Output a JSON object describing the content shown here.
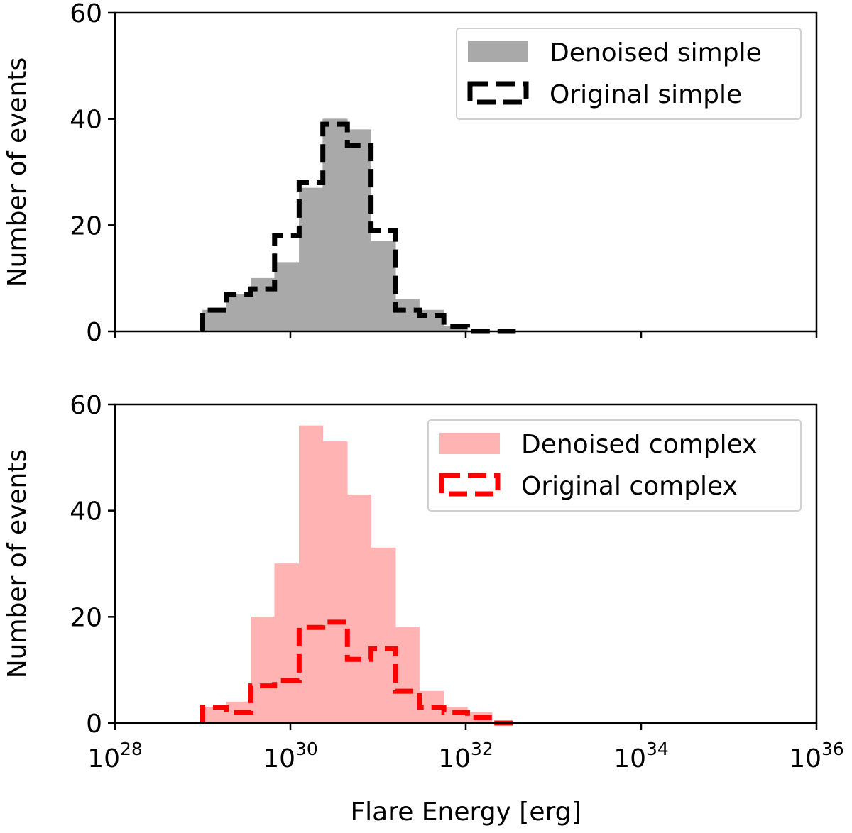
{
  "chart_data": [
    {
      "type": "histogram",
      "panel": "top",
      "ylabel": "Number of events",
      "xlabel": "",
      "xscale": "log10",
      "xlim_exponent": [
        28,
        36
      ],
      "ylim": [
        0,
        60
      ],
      "yticks": [
        "0",
        "20",
        "40",
        "60"
      ],
      "bin_edges_log10": [
        29.0,
        29.27,
        29.55,
        29.82,
        30.1,
        30.37,
        30.65,
        30.92,
        31.2,
        31.47,
        31.75,
        32.02,
        32.3,
        32.57
      ],
      "series": [
        {
          "name": "Denoised simple",
          "style": "filled",
          "color": "#a9a9a9",
          "values": [
            4,
            7,
            10,
            13,
            27,
            40,
            38,
            17,
            6,
            4,
            1,
            0,
            0
          ]
        },
        {
          "name": "Original simple",
          "style": "dashed-step",
          "color": "#000000",
          "values": [
            4,
            7,
            8,
            18,
            28,
            39,
            35,
            19,
            4,
            3,
            1,
            0,
            0
          ]
        }
      ],
      "legend": {
        "position": "upper right",
        "entries": [
          "Denoised simple",
          "Original simple"
        ]
      }
    },
    {
      "type": "histogram",
      "panel": "bottom",
      "ylabel": "Number of events",
      "xlabel": "Flare Energy [erg]",
      "xscale": "log10",
      "xlim_exponent": [
        28,
        36
      ],
      "ylim": [
        0,
        60
      ],
      "yticks": [
        "0",
        "20",
        "40",
        "60"
      ],
      "xticks": [
        {
          "base": "10",
          "exp": "28",
          "value": 28
        },
        {
          "base": "10",
          "exp": "30",
          "value": 30
        },
        {
          "base": "10",
          "exp": "32",
          "value": 32
        },
        {
          "base": "10",
          "exp": "34",
          "value": 34
        },
        {
          "base": "10",
          "exp": "36",
          "value": 36
        }
      ],
      "bin_edges_log10": [
        29.0,
        29.27,
        29.55,
        29.82,
        30.1,
        30.37,
        30.65,
        30.92,
        31.2,
        31.47,
        31.75,
        32.02,
        32.3,
        32.57
      ],
      "series": [
        {
          "name": "Denoised complex",
          "style": "filled",
          "color": "#ffb3b3",
          "values": [
            3,
            4,
            20,
            30,
            56,
            53,
            43,
            33,
            18,
            6,
            3,
            2,
            0
          ]
        },
        {
          "name": "Original complex",
          "style": "dashed-step",
          "color": "#ff0000",
          "values": [
            3,
            2,
            7,
            8,
            18,
            19,
            12,
            14,
            6,
            3,
            2,
            1,
            0
          ]
        }
      ],
      "legend": {
        "position": "upper right",
        "entries": [
          "Denoised complex",
          "Original complex"
        ]
      }
    }
  ]
}
